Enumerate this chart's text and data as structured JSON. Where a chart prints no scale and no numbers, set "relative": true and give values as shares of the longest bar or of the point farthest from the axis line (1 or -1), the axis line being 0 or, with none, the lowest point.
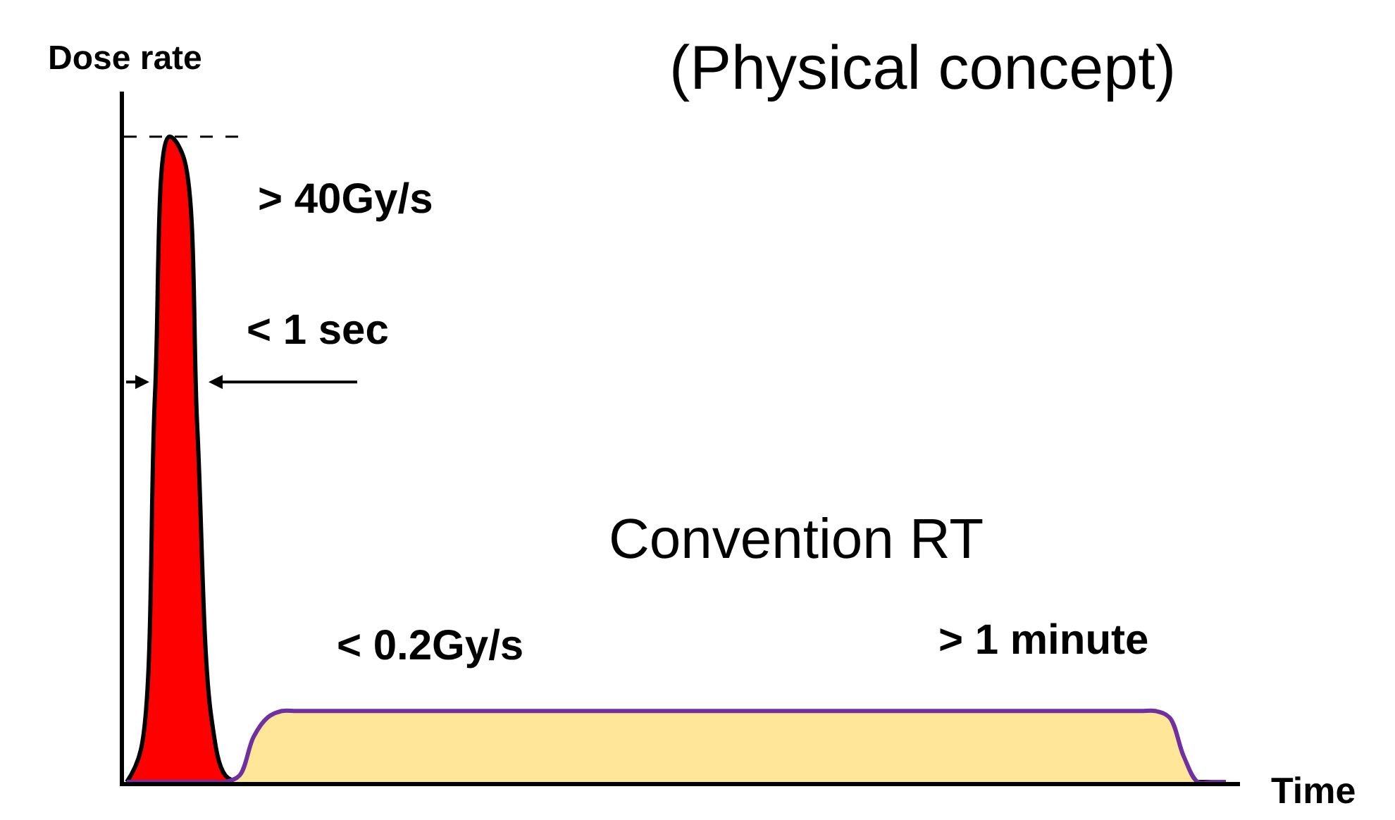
{
  "chart_data": {
    "type": "area",
    "relative": true,
    "title": "(Physical concept)",
    "xlabel": "Time",
    "ylabel": "Dose rate",
    "categories": [
      null,
      null,
      null,
      null,
      null,
      null,
      null,
      null,
      null,
      null,
      null,
      null,
      null,
      null,
      null,
      null,
      null,
      null,
      null,
      null,
      null,
      null,
      null,
      null,
      null,
      null,
      null,
      null,
      null,
      null,
      null,
      null,
      null,
      null,
      null,
      null,
      null,
      null,
      null,
      null,
      null,
      null,
      null,
      null,
      null,
      null,
      null,
      null,
      null,
      null,
      null,
      null,
      null,
      null,
      null,
      null,
      null,
      null,
      null,
      null,
      null,
      null,
      null,
      null,
      null,
      null,
      null,
      null,
      null,
      null,
      null,
      null,
      null,
      null,
      null,
      null,
      null,
      null,
      null
    ],
    "series": [
      {
        "color": "#ff0000",
        "values": [
          0,
          0.05,
          0.6,
          1,
          0.97,
          0.55,
          0.1,
          0.01,
          0,
          0,
          0,
          0,
          0,
          0,
          0,
          0,
          0,
          0,
          0,
          0,
          0,
          0,
          0,
          0,
          0,
          0,
          0,
          0,
          0,
          0,
          0,
          0,
          0,
          0,
          0,
          0,
          0,
          0,
          0,
          0,
          0,
          0,
          0,
          0,
          0,
          0,
          0,
          0,
          0,
          0,
          0,
          0,
          0,
          0,
          0,
          0,
          0,
          0,
          0,
          0,
          0,
          0,
          0,
          0,
          0,
          0,
          0,
          0,
          0,
          0,
          0,
          0,
          0,
          0,
          0,
          0,
          0,
          0,
          0
        ]
      },
      {
        "color": "#ffe699",
        "values": [
          0,
          0,
          0,
          0,
          0,
          0,
          0,
          0,
          0.01,
          0.07,
          0.1,
          0.11,
          0.11,
          0.11,
          0.11,
          0.11,
          0.11,
          0.11,
          0.11,
          0.11,
          0.11,
          0.11,
          0.11,
          0.11,
          0.11,
          0.11,
          0.11,
          0.11,
          0.11,
          0.11,
          0.11,
          0.11,
          0.11,
          0.11,
          0.11,
          0.11,
          0.11,
          0.11,
          0.11,
          0.11,
          0.11,
          0.11,
          0.11,
          0.11,
          0.11,
          0.11,
          0.11,
          0.11,
          0.11,
          0.11,
          0.11,
          0.11,
          0.11,
          0.11,
          0.11,
          0.11,
          0.11,
          0.11,
          0.11,
          0.11,
          0.11,
          0.11,
          0.11,
          0.11,
          0.11,
          0.11,
          0.11,
          0.11,
          0.11,
          0.11,
          0.11,
          0.11,
          0.11,
          0.11,
          0.1,
          0.04,
          0,
          0,
          0
        ]
      }
    ],
    "annotations": [
      "> 40Gy/s",
      "< 1 sec",
      "Convention RT",
      "< 0.2Gy/s",
      "> 1 minute"
    ],
    "ref_lines": [
      {
        "axis": "y",
        "value": 1,
        "line_style": "dashed",
        "color": "#000000"
      }
    ]
  }
}
